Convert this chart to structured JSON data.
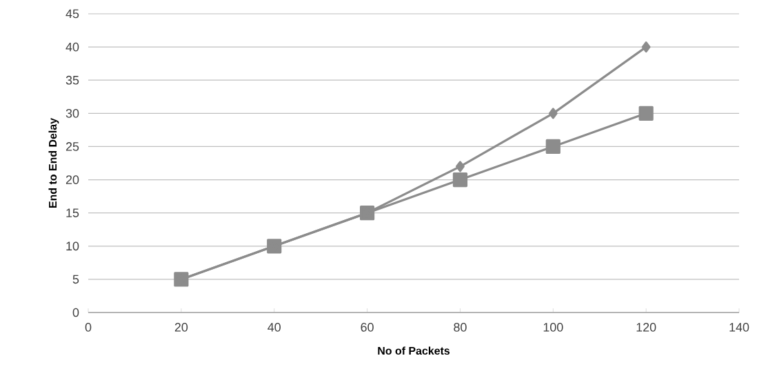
{
  "chart_data": {
    "type": "line",
    "xlabel": "No of Packets",
    "ylabel": "End to End Delay",
    "x": [
      20,
      40,
      60,
      80,
      100,
      120
    ],
    "series": [
      {
        "color": "#8c8c8c",
        "marker": "square",
        "values": [
          5,
          10,
          15,
          20,
          25,
          30
        ]
      },
      {
        "color": "#8c8c8c",
        "marker": "diamond",
        "values": [
          5,
          10,
          15,
          22,
          30,
          40
        ]
      }
    ],
    "xlim": [
      0,
      140
    ],
    "xticks": [
      0,
      20,
      40,
      60,
      80,
      100,
      120,
      140
    ],
    "ylim": [
      0,
      45
    ],
    "yticks": [
      0,
      5,
      10,
      15,
      20,
      25,
      30,
      35,
      40,
      45
    ],
    "grid": "y",
    "line_style": "solid"
  }
}
